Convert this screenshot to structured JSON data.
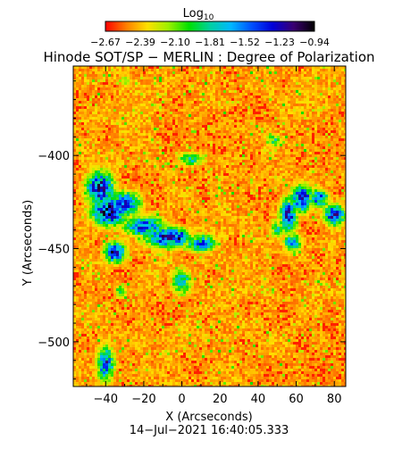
{
  "chart_data": {
    "type": "heatmap",
    "title": "Hinode SOT/SP − MERLIN : Degree of Polarization",
    "colorbar": {
      "label": "Log",
      "label_subscript": "10",
      "min": -2.67,
      "max": -0.94,
      "tick_labels": [
        "−2.67",
        "−2.39",
        "−2.10",
        "−1.81",
        "−1.52",
        "−1.23",
        "−0.94"
      ],
      "colormap": [
        "#ff0000",
        "#ff7f00",
        "#ffe000",
        "#9ef000",
        "#00e000",
        "#00d0a0",
        "#00b8ff",
        "#0050ff",
        "#0000d8",
        "#3a0070",
        "#000000"
      ]
    },
    "xlabel": "X (Arcseconds)",
    "ylabel": "Y (Arcseconds)",
    "xlim": [
      -57,
      86
    ],
    "ylim": [
      -524,
      -352
    ],
    "x_ticks": [
      -40,
      -20,
      0,
      20,
      40,
      60,
      80
    ],
    "x_tick_labels": [
      "−40",
      "−20",
      "0",
      "20",
      "40",
      "60",
      "80"
    ],
    "y_ticks": [
      -500,
      -450,
      -400
    ],
    "y_tick_labels": [
      "−500",
      "−450",
      "−400"
    ],
    "high_polarization_regions": [
      {
        "x": -43,
        "y": -418,
        "spread": [
          8,
          10
        ],
        "level": 0.95
      },
      {
        "x": -38,
        "y": -430,
        "spread": [
          10,
          8
        ],
        "level": 0.98
      },
      {
        "x": -30,
        "y": -426,
        "spread": [
          9,
          7
        ],
        "level": 0.85
      },
      {
        "x": -20,
        "y": -438,
        "spread": [
          12,
          6
        ],
        "level": 0.8
      },
      {
        "x": -35,
        "y": -452,
        "spread": [
          6,
          6
        ],
        "level": 0.92
      },
      {
        "x": -8,
        "y": -444,
        "spread": [
          13,
          6
        ],
        "level": 0.88
      },
      {
        "x": -2,
        "y": -444,
        "spread": [
          5,
          5
        ],
        "level": 0.95
      },
      {
        "x": 10,
        "y": -447,
        "spread": [
          9,
          5
        ],
        "level": 0.72
      },
      {
        "x": 0,
        "y": -468,
        "spread": [
          6,
          8
        ],
        "level": 0.6
      },
      {
        "x": 5,
        "y": -402,
        "spread": [
          8,
          4
        ],
        "level": 0.55
      },
      {
        "x": 48,
        "y": -392,
        "spread": [
          5,
          4
        ],
        "level": 0.5
      },
      {
        "x": 56,
        "y": -432,
        "spread": [
          5,
          10
        ],
        "level": 0.85
      },
      {
        "x": 63,
        "y": -423,
        "spread": [
          6,
          8
        ],
        "level": 0.9
      },
      {
        "x": 72,
        "y": -423,
        "spread": [
          5,
          5
        ],
        "level": 0.85
      },
      {
        "x": 80,
        "y": -432,
        "spread": [
          6,
          6
        ],
        "level": 0.9
      },
      {
        "x": 58,
        "y": -447,
        "spread": [
          5,
          6
        ],
        "level": 0.65
      },
      {
        "x": 50,
        "y": -440,
        "spread": [
          4,
          5
        ],
        "level": 0.55
      },
      {
        "x": -40,
        "y": -512,
        "spread": [
          5,
          10
        ],
        "level": 0.82
      },
      {
        "x": -32,
        "y": -473,
        "spread": [
          4,
          4
        ],
        "level": 0.5
      },
      {
        "x": -30,
        "y": -360,
        "spread": [
          4,
          3
        ],
        "level": 0.4
      }
    ]
  },
  "footer": {
    "timestamp": "14−Jul−2021 16:40:05.333"
  }
}
